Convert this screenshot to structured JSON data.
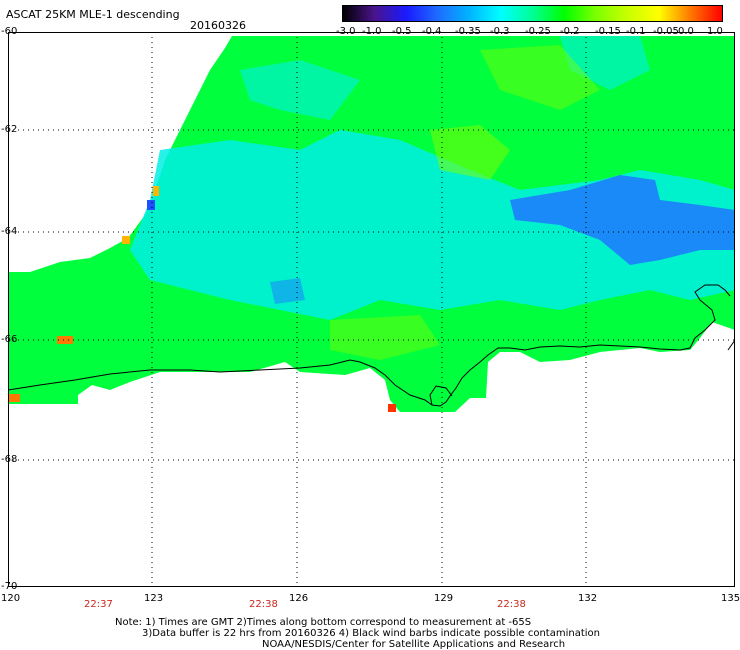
{
  "header": {
    "title": "ASCAT 25KM MLE-1 descending",
    "date": "20160326"
  },
  "colorbar": {
    "labels": [
      "-3.0",
      "-1.0",
      "-0.5",
      "-0.4",
      "-0.35",
      "-0.3",
      "-0.25",
      "-0.2",
      "-0.15",
      "-0.1",
      "-0.05",
      "0.0",
      "1.0"
    ],
    "colors": [
      "#000000",
      "#4a148c",
      "#1a1aff",
      "#1e6cff",
      "#00b4ff",
      "#00ffff",
      "#00ff96",
      "#00ff00",
      "#7cff00",
      "#c8ff00",
      "#ffff00",
      "#ff7800",
      "#ff0000"
    ]
  },
  "axes": {
    "y_labels": [
      "-60",
      "-62",
      "-64",
      "-66",
      "-68",
      "-70"
    ],
    "x_labels": [
      "120",
      "123",
      "126",
      "129",
      "132",
      "135"
    ],
    "time_labels": [
      "22:37",
      "22:38",
      "22:38"
    ]
  },
  "colors": {
    "time_label": "#c8281e",
    "coast": "#000000"
  },
  "notes": {
    "line1": "Note: 1) Times are GMT 2)Times along bottom correspond to measurement at -65S",
    "line2": "3)Data buffer is 22 hrs from 20160326 4) Black wind barbs indicate possible contamination",
    "line3": "NOAA/NESDIS/Center for Satellite Applications and Research"
  }
}
